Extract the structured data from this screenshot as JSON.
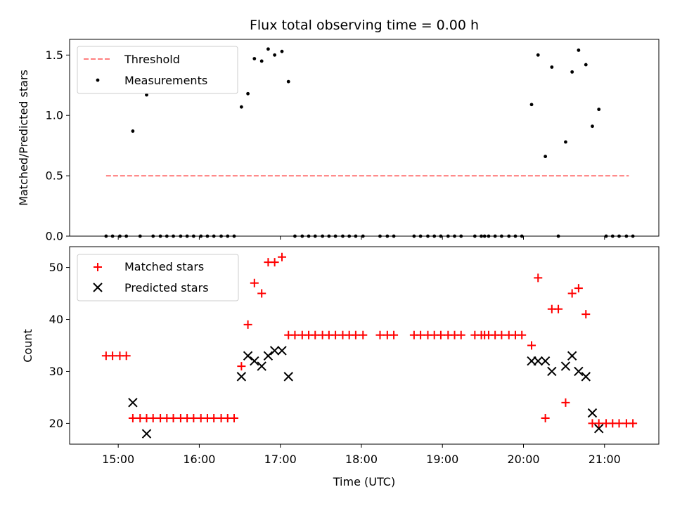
{
  "chart_data": [
    {
      "type": "scatter",
      "title": "Flux total observing time = 0.00 h",
      "xlabel": "",
      "ylabel": "Matched/Predicted stars",
      "x_unit": "decimal hours UTC",
      "xlim": [
        14.4,
        21.67
      ],
      "ylim": [
        0,
        1.63
      ],
      "yticks": [
        "0.0",
        "0.5",
        "1.0",
        "1.5"
      ],
      "xticks": [
        "15:00",
        "16:00",
        "17:00",
        "18:00",
        "19:00",
        "20:00",
        "21:00"
      ],
      "legend": {
        "placement": "top-left",
        "entries": [
          "Threshold",
          "Measurements"
        ]
      },
      "threshold": {
        "name": "Threshold",
        "value": 0.5,
        "x_start": 14.85,
        "x_end": 21.3,
        "color": "#ff7f7f",
        "style": "dashed"
      },
      "series": [
        {
          "name": "Measurements",
          "color": "#000000",
          "marker": "dot",
          "points": [
            [
              14.85,
              0
            ],
            [
              14.93,
              0
            ],
            [
              15.02,
              0
            ],
            [
              15.1,
              0
            ],
            [
              15.18,
              0.87
            ],
            [
              15.27,
              0
            ],
            [
              15.35,
              1.17
            ],
            [
              15.43,
              0
            ],
            [
              15.52,
              0
            ],
            [
              15.6,
              0
            ],
            [
              15.68,
              0
            ],
            [
              15.77,
              0
            ],
            [
              15.85,
              0
            ],
            [
              15.93,
              0
            ],
            [
              16.02,
              0
            ],
            [
              16.1,
              0
            ],
            [
              16.18,
              0
            ],
            [
              16.27,
              0
            ],
            [
              16.35,
              0
            ],
            [
              16.43,
              0
            ],
            [
              16.52,
              1.07
            ],
            [
              16.6,
              1.18
            ],
            [
              16.68,
              1.47
            ],
            [
              16.77,
              1.45
            ],
            [
              16.85,
              1.55
            ],
            [
              16.93,
              1.5
            ],
            [
              17.02,
              1.53
            ],
            [
              17.1,
              1.28
            ],
            [
              17.18,
              0
            ],
            [
              17.27,
              0
            ],
            [
              17.35,
              0
            ],
            [
              17.43,
              0
            ],
            [
              17.52,
              0
            ],
            [
              17.6,
              0
            ],
            [
              17.68,
              0
            ],
            [
              17.77,
              0
            ],
            [
              17.85,
              0
            ],
            [
              17.93,
              0
            ],
            [
              18.02,
              0
            ],
            [
              18.23,
              0
            ],
            [
              18.32,
              0
            ],
            [
              18.4,
              0
            ],
            [
              18.65,
              0
            ],
            [
              18.73,
              0
            ],
            [
              18.82,
              0
            ],
            [
              18.9,
              0
            ],
            [
              18.98,
              0
            ],
            [
              19.07,
              0
            ],
            [
              19.15,
              0
            ],
            [
              19.23,
              0
            ],
            [
              19.4,
              0
            ],
            [
              19.48,
              0
            ],
            [
              19.52,
              0
            ],
            [
              19.57,
              0
            ],
            [
              19.65,
              0
            ],
            [
              19.73,
              0
            ],
            [
              19.82,
              0
            ],
            [
              19.9,
              0
            ],
            [
              19.98,
              0
            ],
            [
              20.1,
              1.09
            ],
            [
              20.18,
              1.5
            ],
            [
              20.27,
              0.66
            ],
            [
              20.35,
              1.4
            ],
            [
              20.43,
              0
            ],
            [
              20.52,
              0.78
            ],
            [
              20.6,
              1.36
            ],
            [
              20.68,
              1.54
            ],
            [
              20.77,
              1.42
            ],
            [
              20.85,
              0.91
            ],
            [
              20.93,
              1.05
            ],
            [
              21.02,
              0
            ],
            [
              21.1,
              0
            ],
            [
              21.18,
              0
            ],
            [
              21.27,
              0
            ],
            [
              21.35,
              0
            ]
          ]
        }
      ]
    },
    {
      "type": "scatter",
      "title": "",
      "xlabel": "Time (UTC)",
      "ylabel": "Count",
      "x_unit": "decimal hours UTC",
      "xlim": [
        14.4,
        21.67
      ],
      "ylim": [
        16,
        54
      ],
      "yticks": [
        "20",
        "30",
        "40",
        "50"
      ],
      "xticks": [
        "15:00",
        "16:00",
        "17:00",
        "18:00",
        "19:00",
        "20:00",
        "21:00"
      ],
      "legend": {
        "placement": "top-left",
        "entries": [
          "Matched stars",
          "Predicted stars"
        ]
      },
      "series": [
        {
          "name": "Matched stars",
          "color": "#ff0000",
          "marker": "plus",
          "points": [
            [
              14.85,
              33
            ],
            [
              14.93,
              33
            ],
            [
              15.02,
              33
            ],
            [
              15.1,
              33
            ],
            [
              15.18,
              21
            ],
            [
              15.27,
              21
            ],
            [
              15.35,
              21
            ],
            [
              15.43,
              21
            ],
            [
              15.52,
              21
            ],
            [
              15.6,
              21
            ],
            [
              15.68,
              21
            ],
            [
              15.77,
              21
            ],
            [
              15.85,
              21
            ],
            [
              15.93,
              21
            ],
            [
              16.02,
              21
            ],
            [
              16.1,
              21
            ],
            [
              16.18,
              21
            ],
            [
              16.27,
              21
            ],
            [
              16.35,
              21
            ],
            [
              16.43,
              21
            ],
            [
              16.52,
              31
            ],
            [
              16.6,
              39
            ],
            [
              16.68,
              47
            ],
            [
              16.77,
              45
            ],
            [
              16.85,
              51
            ],
            [
              16.93,
              51
            ],
            [
              17.02,
              52
            ],
            [
              17.1,
              37
            ],
            [
              17.18,
              37
            ],
            [
              17.27,
              37
            ],
            [
              17.35,
              37
            ],
            [
              17.43,
              37
            ],
            [
              17.52,
              37
            ],
            [
              17.6,
              37
            ],
            [
              17.68,
              37
            ],
            [
              17.77,
              37
            ],
            [
              17.85,
              37
            ],
            [
              17.93,
              37
            ],
            [
              18.02,
              37
            ],
            [
              18.23,
              37
            ],
            [
              18.32,
              37
            ],
            [
              18.4,
              37
            ],
            [
              18.65,
              37
            ],
            [
              18.73,
              37
            ],
            [
              18.82,
              37
            ],
            [
              18.9,
              37
            ],
            [
              18.98,
              37
            ],
            [
              19.07,
              37
            ],
            [
              19.15,
              37
            ],
            [
              19.23,
              37
            ],
            [
              19.4,
              37
            ],
            [
              19.48,
              37
            ],
            [
              19.52,
              37
            ],
            [
              19.57,
              37
            ],
            [
              19.65,
              37
            ],
            [
              19.73,
              37
            ],
            [
              19.82,
              37
            ],
            [
              19.9,
              37
            ],
            [
              19.98,
              37
            ],
            [
              20.1,
              35
            ],
            [
              20.18,
              48
            ],
            [
              20.27,
              21
            ],
            [
              20.35,
              42
            ],
            [
              20.43,
              42
            ],
            [
              20.52,
              24
            ],
            [
              20.6,
              45
            ],
            [
              20.68,
              46
            ],
            [
              20.77,
              41
            ],
            [
              20.85,
              20
            ],
            [
              20.93,
              20
            ],
            [
              21.02,
              20
            ],
            [
              21.1,
              20
            ],
            [
              21.18,
              20
            ],
            [
              21.27,
              20
            ],
            [
              21.35,
              20
            ]
          ]
        },
        {
          "name": "Predicted stars",
          "color": "#000000",
          "marker": "x",
          "points": [
            [
              15.18,
              24
            ],
            [
              15.35,
              18
            ],
            [
              16.52,
              29
            ],
            [
              16.6,
              33
            ],
            [
              16.68,
              32
            ],
            [
              16.77,
              31
            ],
            [
              16.85,
              33
            ],
            [
              16.93,
              34
            ],
            [
              17.02,
              34
            ],
            [
              17.1,
              29
            ],
            [
              20.1,
              32
            ],
            [
              20.18,
              32
            ],
            [
              20.27,
              32
            ],
            [
              20.35,
              30
            ],
            [
              20.52,
              31
            ],
            [
              20.6,
              33
            ],
            [
              20.68,
              30
            ],
            [
              20.77,
              29
            ],
            [
              20.85,
              22
            ],
            [
              20.93,
              19
            ]
          ]
        }
      ]
    }
  ]
}
